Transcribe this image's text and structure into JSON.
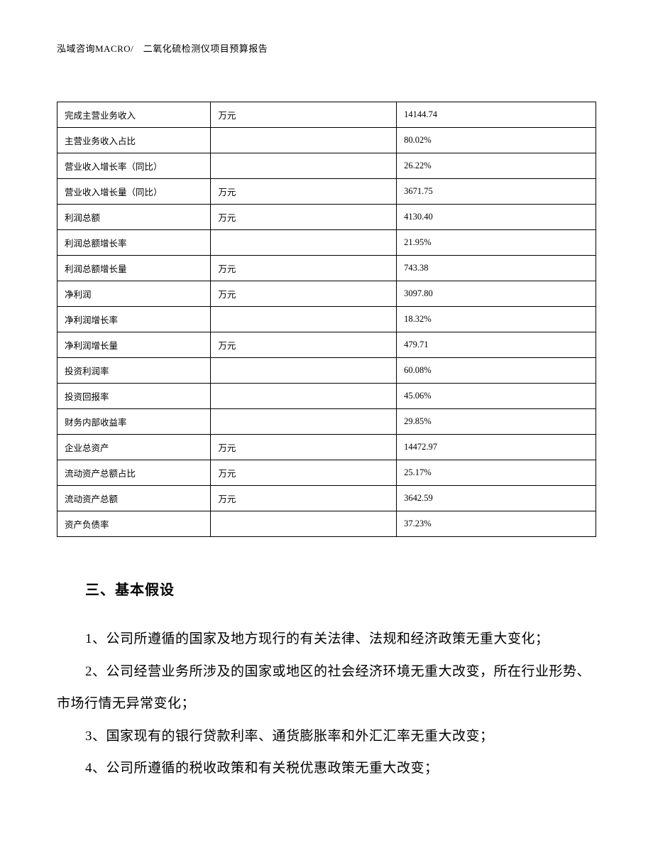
{
  "header": {
    "text": "泓域咨询MACRO/　二氧化硫检测仪项目预算报告"
  },
  "table": {
    "rows": [
      {
        "label": "完成主营业务收入",
        "unit": "万元",
        "value": "14144.74"
      },
      {
        "label": "主营业务收入占比",
        "unit": "",
        "value": "80.02%"
      },
      {
        "label": "营业收入增长率（同比）",
        "unit": "",
        "value": "26.22%"
      },
      {
        "label": "营业收入增长量（同比）",
        "unit": "万元",
        "value": "3671.75"
      },
      {
        "label": "利润总额",
        "unit": "万元",
        "value": "4130.40"
      },
      {
        "label": "利润总额增长率",
        "unit": "",
        "value": "21.95%"
      },
      {
        "label": "利润总额增长量",
        "unit": "万元",
        "value": "743.38"
      },
      {
        "label": "净利润",
        "unit": "万元",
        "value": "3097.80"
      },
      {
        "label": "净利润增长率",
        "unit": "",
        "value": "18.32%"
      },
      {
        "label": "净利润增长量",
        "unit": "万元",
        "value": "479.71"
      },
      {
        "label": "投资利润率",
        "unit": "",
        "value": "60.08%"
      },
      {
        "label": "投资回报率",
        "unit": "",
        "value": "45.06%"
      },
      {
        "label": "财务内部收益率",
        "unit": "",
        "value": "29.85%"
      },
      {
        "label": "企业总资产",
        "unit": "万元",
        "value": "14472.97"
      },
      {
        "label": "流动资产总额占比",
        "unit": "万元",
        "value": "25.17%"
      },
      {
        "label": "流动资产总额",
        "unit": "万元",
        "value": "3642.59"
      },
      {
        "label": "资产负债率",
        "unit": "",
        "value": "37.23%"
      }
    ]
  },
  "section": {
    "heading": "三、基本假设",
    "paragraphs": [
      "1、公司所遵循的国家及地方现行的有关法律、法规和经济政策无重大变化；",
      "2、公司经营业务所涉及的国家或地区的社会经济环境无重大改变，所在行业形势、市场行情无异常变化；",
      "3、国家现有的银行贷款利率、通货膨胀率和外汇汇率无重大改变；",
      "4、公司所遵循的税收政策和有关税优惠政策无重大改变；"
    ]
  }
}
